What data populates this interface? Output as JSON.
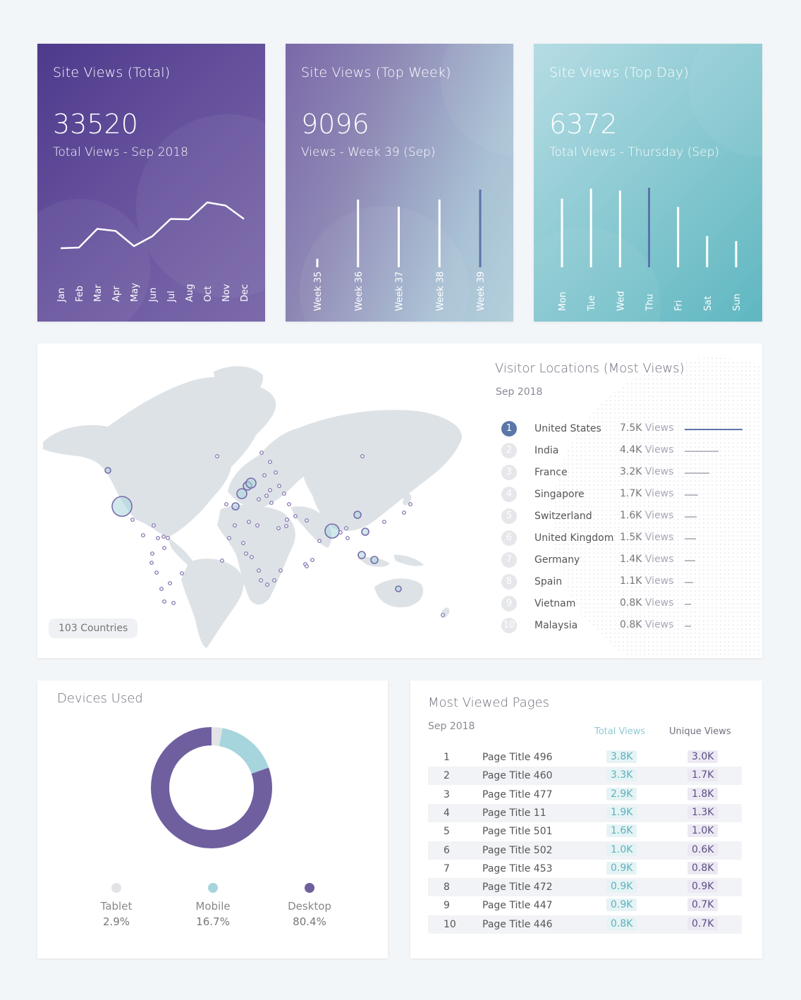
{
  "colors": {
    "purple": "#6f5f9f",
    "teal": "#a6d5dd",
    "grey": "#e1e3e6",
    "accent_blue": "#5a77a8"
  },
  "kpi_total": {
    "title": "Site Views (Total)",
    "value": "33520",
    "subtitle": "Total Views  - Sep 2018"
  },
  "kpi_week": {
    "title": "Site Views (Top Week)",
    "value": "9096",
    "subtitle": "Views  -  Week 39 (Sep)"
  },
  "kpi_day": {
    "title": "Site Views (Top Day)",
    "value": "6372",
    "subtitle": "Total Views  -  Thursday (Sep)"
  },
  "map": {
    "title": "Visitor Locations (Most Views)",
    "subtitle": "Sep 2018",
    "countries_count": "103",
    "countries_label": "Countries",
    "locations": [
      {
        "rank": "1",
        "name": "United States",
        "value": "7.5K",
        "unit": "Views",
        "views": 7.5
      },
      {
        "rank": "2",
        "name": "India",
        "value": "4.4K",
        "unit": "Views",
        "views": 4.4
      },
      {
        "rank": "3",
        "name": "France",
        "value": "3.2K",
        "unit": "Views",
        "views": 3.2
      },
      {
        "rank": "4",
        "name": "Singapore",
        "value": "1.7K",
        "unit": "Views",
        "views": 1.7
      },
      {
        "rank": "5",
        "name": "Switzerland",
        "value": "1.6K",
        "unit": "Views",
        "views": 1.6
      },
      {
        "rank": "6",
        "name": "United Kingdom",
        "value": "1.5K",
        "unit": "Views",
        "views": 1.5
      },
      {
        "rank": "7",
        "name": "Germany",
        "value": "1.4K",
        "unit": "Views",
        "views": 1.4
      },
      {
        "rank": "8",
        "name": "Spain",
        "value": "1.1K",
        "unit": "Views",
        "views": 1.1
      },
      {
        "rank": "9",
        "name": "Vietnam",
        "value": "0.8K",
        "unit": "Views",
        "views": 0.8
      },
      {
        "rank": "10",
        "name": "Malaysia",
        "value": "0.8K",
        "unit": "Views",
        "views": 0.8
      }
    ]
  },
  "devices": {
    "title": "Devices Used",
    "items": [
      {
        "label": "Tablet",
        "pct": "2.9%",
        "value": 2.9,
        "color": "#e1e3e6"
      },
      {
        "label": "Mobile",
        "pct": "16.7%",
        "value": 16.7,
        "color": "#a6d5dd"
      },
      {
        "label": "Desktop",
        "pct": "80.4%",
        "value": 80.4,
        "color": "#6f5f9f"
      }
    ]
  },
  "pages": {
    "title": "Most Viewed Pages",
    "subtitle": "Sep 2018",
    "col_total": "Total Views",
    "col_unique": "Unique Views",
    "rows": [
      {
        "rank": "1",
        "title": "Page Title 496",
        "total": "3.8K",
        "unique": "3.0K"
      },
      {
        "rank": "2",
        "title": "Page Title 460",
        "total": "3.3K",
        "unique": "1.7K"
      },
      {
        "rank": "3",
        "title": "Page Title 477",
        "total": "2.9K",
        "unique": "1.8K"
      },
      {
        "rank": "4",
        "title": "Page Title 11",
        "total": "1.9K",
        "unique": "1.3K"
      },
      {
        "rank": "5",
        "title": "Page Title 501",
        "total": "1.6K",
        "unique": "1.0K"
      },
      {
        "rank": "6",
        "title": "Page Title 502",
        "total": "1.0K",
        "unique": "0.6K"
      },
      {
        "rank": "7",
        "title": "Page Title 453",
        "total": "0.9K",
        "unique": "0.8K"
      },
      {
        "rank": "8",
        "title": "Page Title 472",
        "total": "0.9K",
        "unique": "0.9K"
      },
      {
        "rank": "9",
        "title": "Page Title 447",
        "total": "0.9K",
        "unique": "0.7K"
      },
      {
        "rank": "10",
        "title": "Page Title 446",
        "total": "0.8K",
        "unique": "0.7K"
      }
    ]
  },
  "chart_data": [
    {
      "type": "line",
      "title": "Site Views (Total)",
      "categories": [
        "Jan",
        "Feb",
        "Mar",
        "Apr",
        "May",
        "Jun",
        "Jul",
        "Aug",
        "Oct",
        "Nov",
        "Dec"
      ],
      "values": [
        1900,
        1920,
        2450,
        2390,
        1960,
        2240,
        2730,
        2720,
        3200,
        3110,
        2730
      ],
      "ylim": [
        0,
        4000
      ]
    },
    {
      "type": "bar",
      "title": "Site Views (Top Week)",
      "categories": [
        "Week 35",
        "Week 36",
        "Week 37",
        "Week 38",
        "Week 39"
      ],
      "values": [
        1000,
        7930,
        7100,
        7940,
        9096
      ],
      "highlight": "Week 39",
      "ylim": [
        0,
        9500
      ]
    },
    {
      "type": "bar",
      "title": "Site Views (Top Day)",
      "categories": [
        "Mon",
        "Tue",
        "Wed",
        "Thu",
        "Fri",
        "Sat",
        "Sun"
      ],
      "values": [
        5500,
        6300,
        6150,
        6372,
        4830,
        2500,
        2100
      ],
      "highlight": "Thu",
      "ylim": [
        0,
        6500
      ]
    },
    {
      "type": "pie",
      "title": "Devices Used",
      "categories": [
        "Tablet",
        "Mobile",
        "Desktop"
      ],
      "values": [
        2.9,
        16.7,
        80.4
      ]
    }
  ]
}
